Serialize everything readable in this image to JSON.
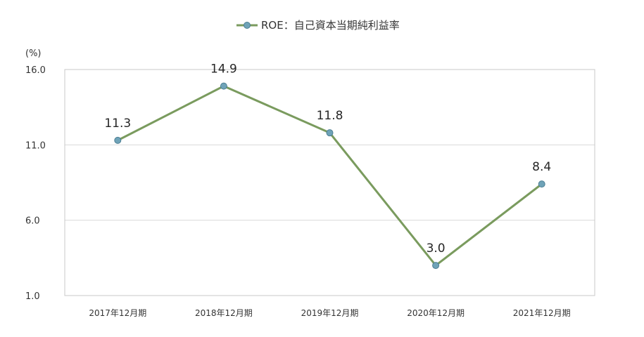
{
  "chart_data": {
    "type": "line",
    "categories": [
      "2017年12月期",
      "2018年12月期",
      "2019年12月期",
      "2020年12月期",
      "2021年12月期"
    ],
    "series": [
      {
        "name": "ROE：自己資本当期純利益率",
        "values": [
          11.3,
          14.9,
          11.8,
          3.0,
          8.4
        ],
        "labels": [
          "11.3",
          "14.9",
          "11.8",
          "3.0",
          "8.4"
        ],
        "color": "#7a9b5e",
        "marker_color": "#6fa3b8"
      }
    ],
    "unit_label": "(%)",
    "ylim": [
      1.0,
      16.0
    ],
    "yticks": [
      "1.0",
      "6.0",
      "11.0",
      "16.0"
    ],
    "ytick_values": [
      1.0,
      6.0,
      11.0,
      16.0
    ],
    "grid": true,
    "legend_position": "top-center"
  }
}
